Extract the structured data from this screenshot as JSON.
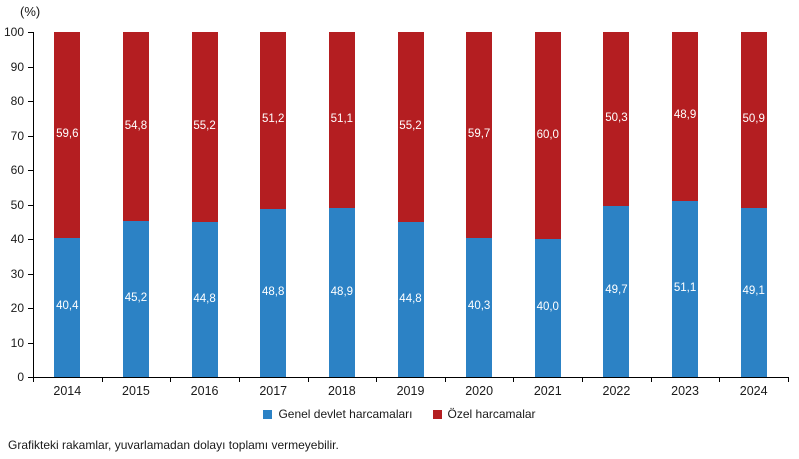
{
  "chart_data": {
    "type": "bar",
    "stacked": true,
    "title": "",
    "xlabel": "",
    "ylabel": "(%)",
    "ylim": [
      0,
      100
    ],
    "ytick_interval": 10,
    "yticks": [
      "0",
      "10",
      "20",
      "30",
      "40",
      "50",
      "60",
      "70",
      "80",
      "90",
      "100"
    ],
    "grid": false,
    "legend_position": "bottom",
    "categories": [
      "2014",
      "2015",
      "2016",
      "2017",
      "2018",
      "2019",
      "2020",
      "2021",
      "2022",
      "2023",
      "2024"
    ],
    "series": [
      {
        "name": "Genel devlet harcamaları",
        "color": "#2C82C5",
        "values": [
          40.4,
          45.2,
          44.8,
          48.8,
          48.9,
          44.8,
          40.3,
          40.0,
          49.7,
          51.1,
          49.1
        ],
        "labels": [
          "40,4",
          "45,2",
          "44,8",
          "48,8",
          "48,9",
          "44,8",
          "40,3",
          "40,0",
          "49,7",
          "51,1",
          "49,1"
        ]
      },
      {
        "name": "Özel harcamalar",
        "color": "#B41E21",
        "values": [
          59.6,
          54.8,
          55.2,
          51.2,
          51.1,
          55.2,
          59.7,
          60.0,
          50.3,
          48.9,
          50.9
        ],
        "labels": [
          "59,6",
          "54,8",
          "55,2",
          "51,2",
          "51,1",
          "55,2",
          "59,7",
          "60,0",
          "50,3",
          "48,9",
          "50,9"
        ]
      }
    ]
  },
  "legend": {
    "items": [
      {
        "label": "Genel devlet harcamaları",
        "color": "#2C82C5"
      },
      {
        "label": "Özel harcamalar",
        "color": "#B41E21"
      }
    ]
  },
  "footnote": "Grafikteki rakamlar, yuvarlamadan dolayı toplamı vermeyebilir."
}
